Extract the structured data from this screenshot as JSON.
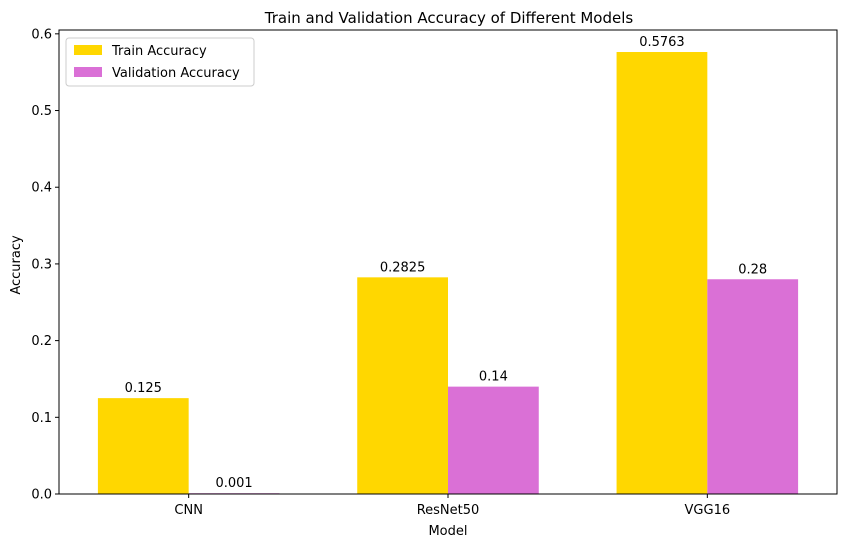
{
  "chart_data": {
    "type": "bar",
    "title": "Train and Validation Accuracy of Different Models",
    "xlabel": "Model",
    "ylabel": "Accuracy",
    "categories": [
      "CNN",
      "ResNet50",
      "VGG16"
    ],
    "series": [
      {
        "name": "Train Accuracy",
        "values": [
          0.125,
          0.2825,
          0.5763
        ],
        "labels": [
          "0.125",
          "0.2825",
          "0.5763"
        ],
        "color": "#FFD700"
      },
      {
        "name": "Validation Accuracy",
        "values": [
          0.001,
          0.14,
          0.28
        ],
        "labels": [
          "0.001",
          "0.14",
          "0.28"
        ],
        "color": "#DA70D6"
      }
    ],
    "ylim": [
      0,
      0.605
    ],
    "yticks": [
      0.0,
      0.1,
      0.2,
      0.3,
      0.4,
      0.5,
      0.6
    ],
    "ytick_labels": [
      "0.0",
      "0.1",
      "0.2",
      "0.3",
      "0.4",
      "0.5",
      "0.6"
    ],
    "grid": false,
    "legend_position": "top-left"
  }
}
